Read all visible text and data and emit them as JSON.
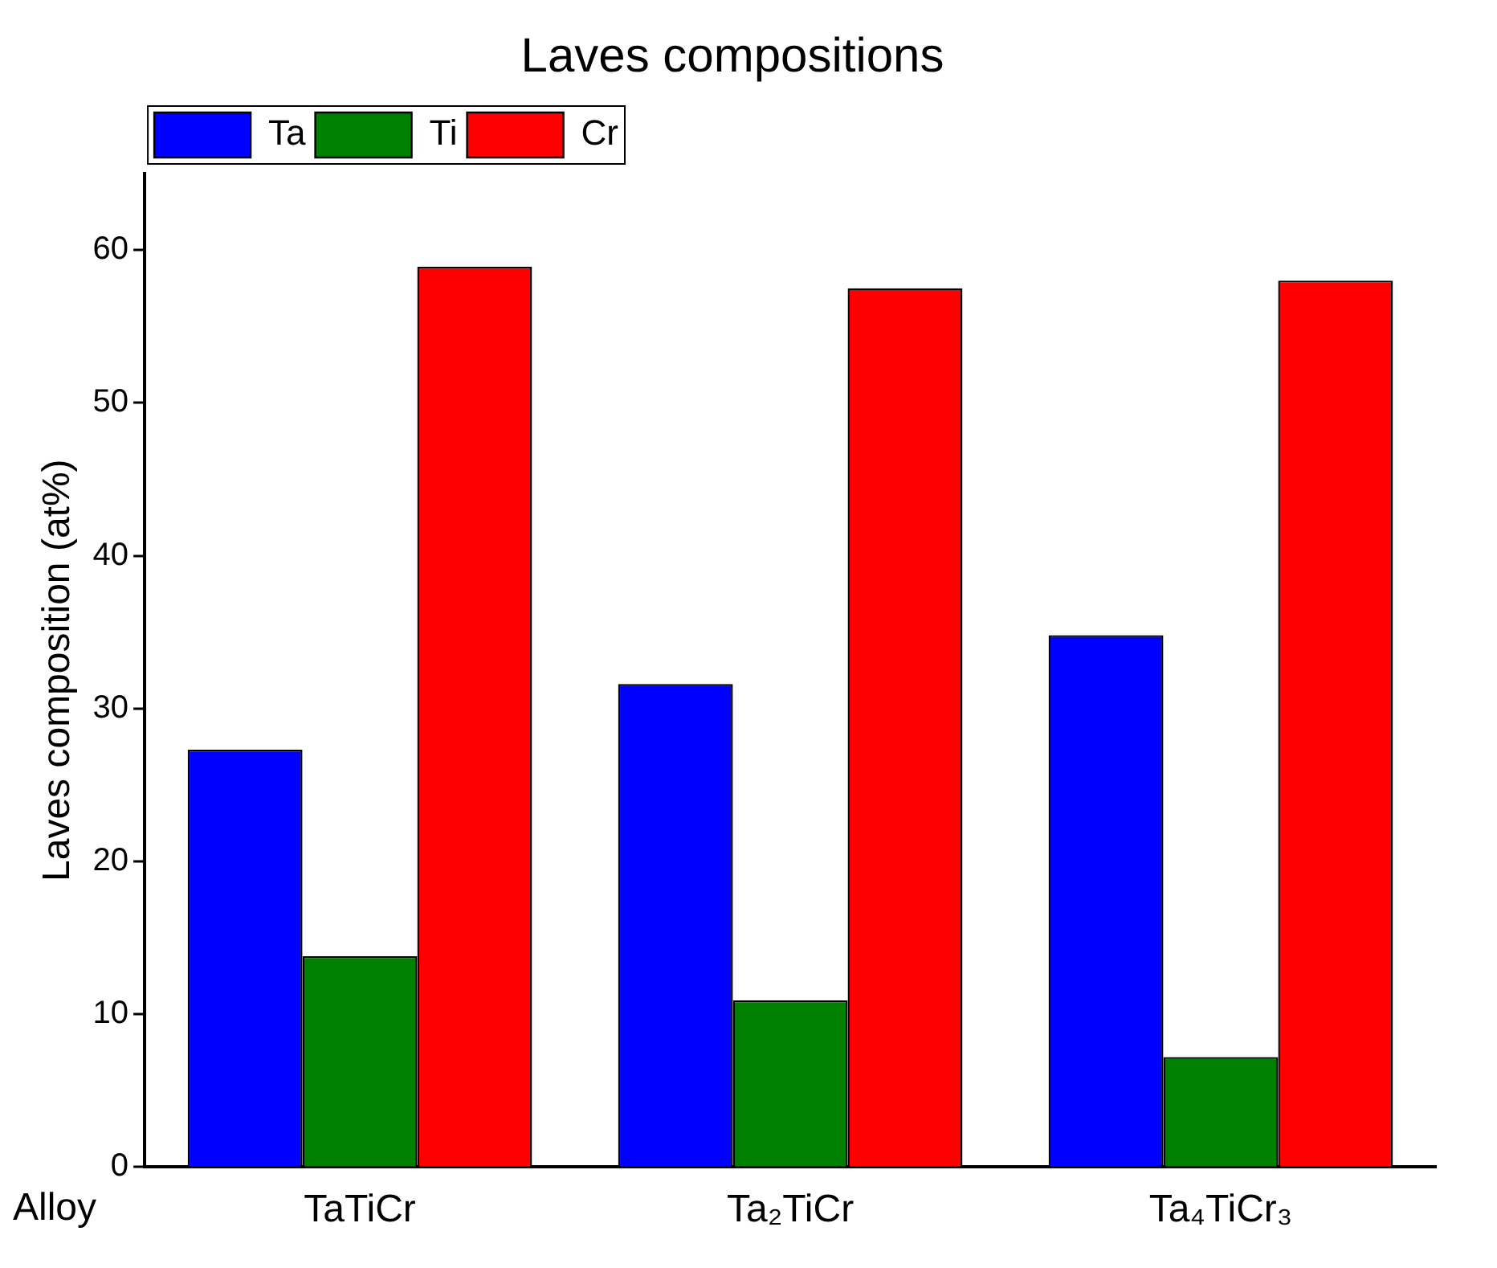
{
  "chart_data": {
    "type": "bar",
    "title": "Laves compositions",
    "xlabel": "Alloy",
    "ylabel": "Laves composition (at%)",
    "categories": [
      "TaTiCr",
      "Ta₂TiCr",
      "Ta₄TiCr₃"
    ],
    "series": [
      {
        "name": "Ta",
        "color": "#0000ff",
        "values": [
          27.3,
          31.6,
          34.8
        ]
      },
      {
        "name": "Ti",
        "color": "#008000",
        "values": [
          13.8,
          10.9,
          7.2
        ]
      },
      {
        "name": "Cr",
        "color": "#ff0000",
        "values": [
          58.9,
          57.5,
          58.0
        ]
      }
    ],
    "ylim": [
      0,
      65
    ],
    "yticks": [
      0,
      10,
      20,
      30,
      40,
      50,
      60
    ],
    "grid": false,
    "legend": "top left"
  }
}
